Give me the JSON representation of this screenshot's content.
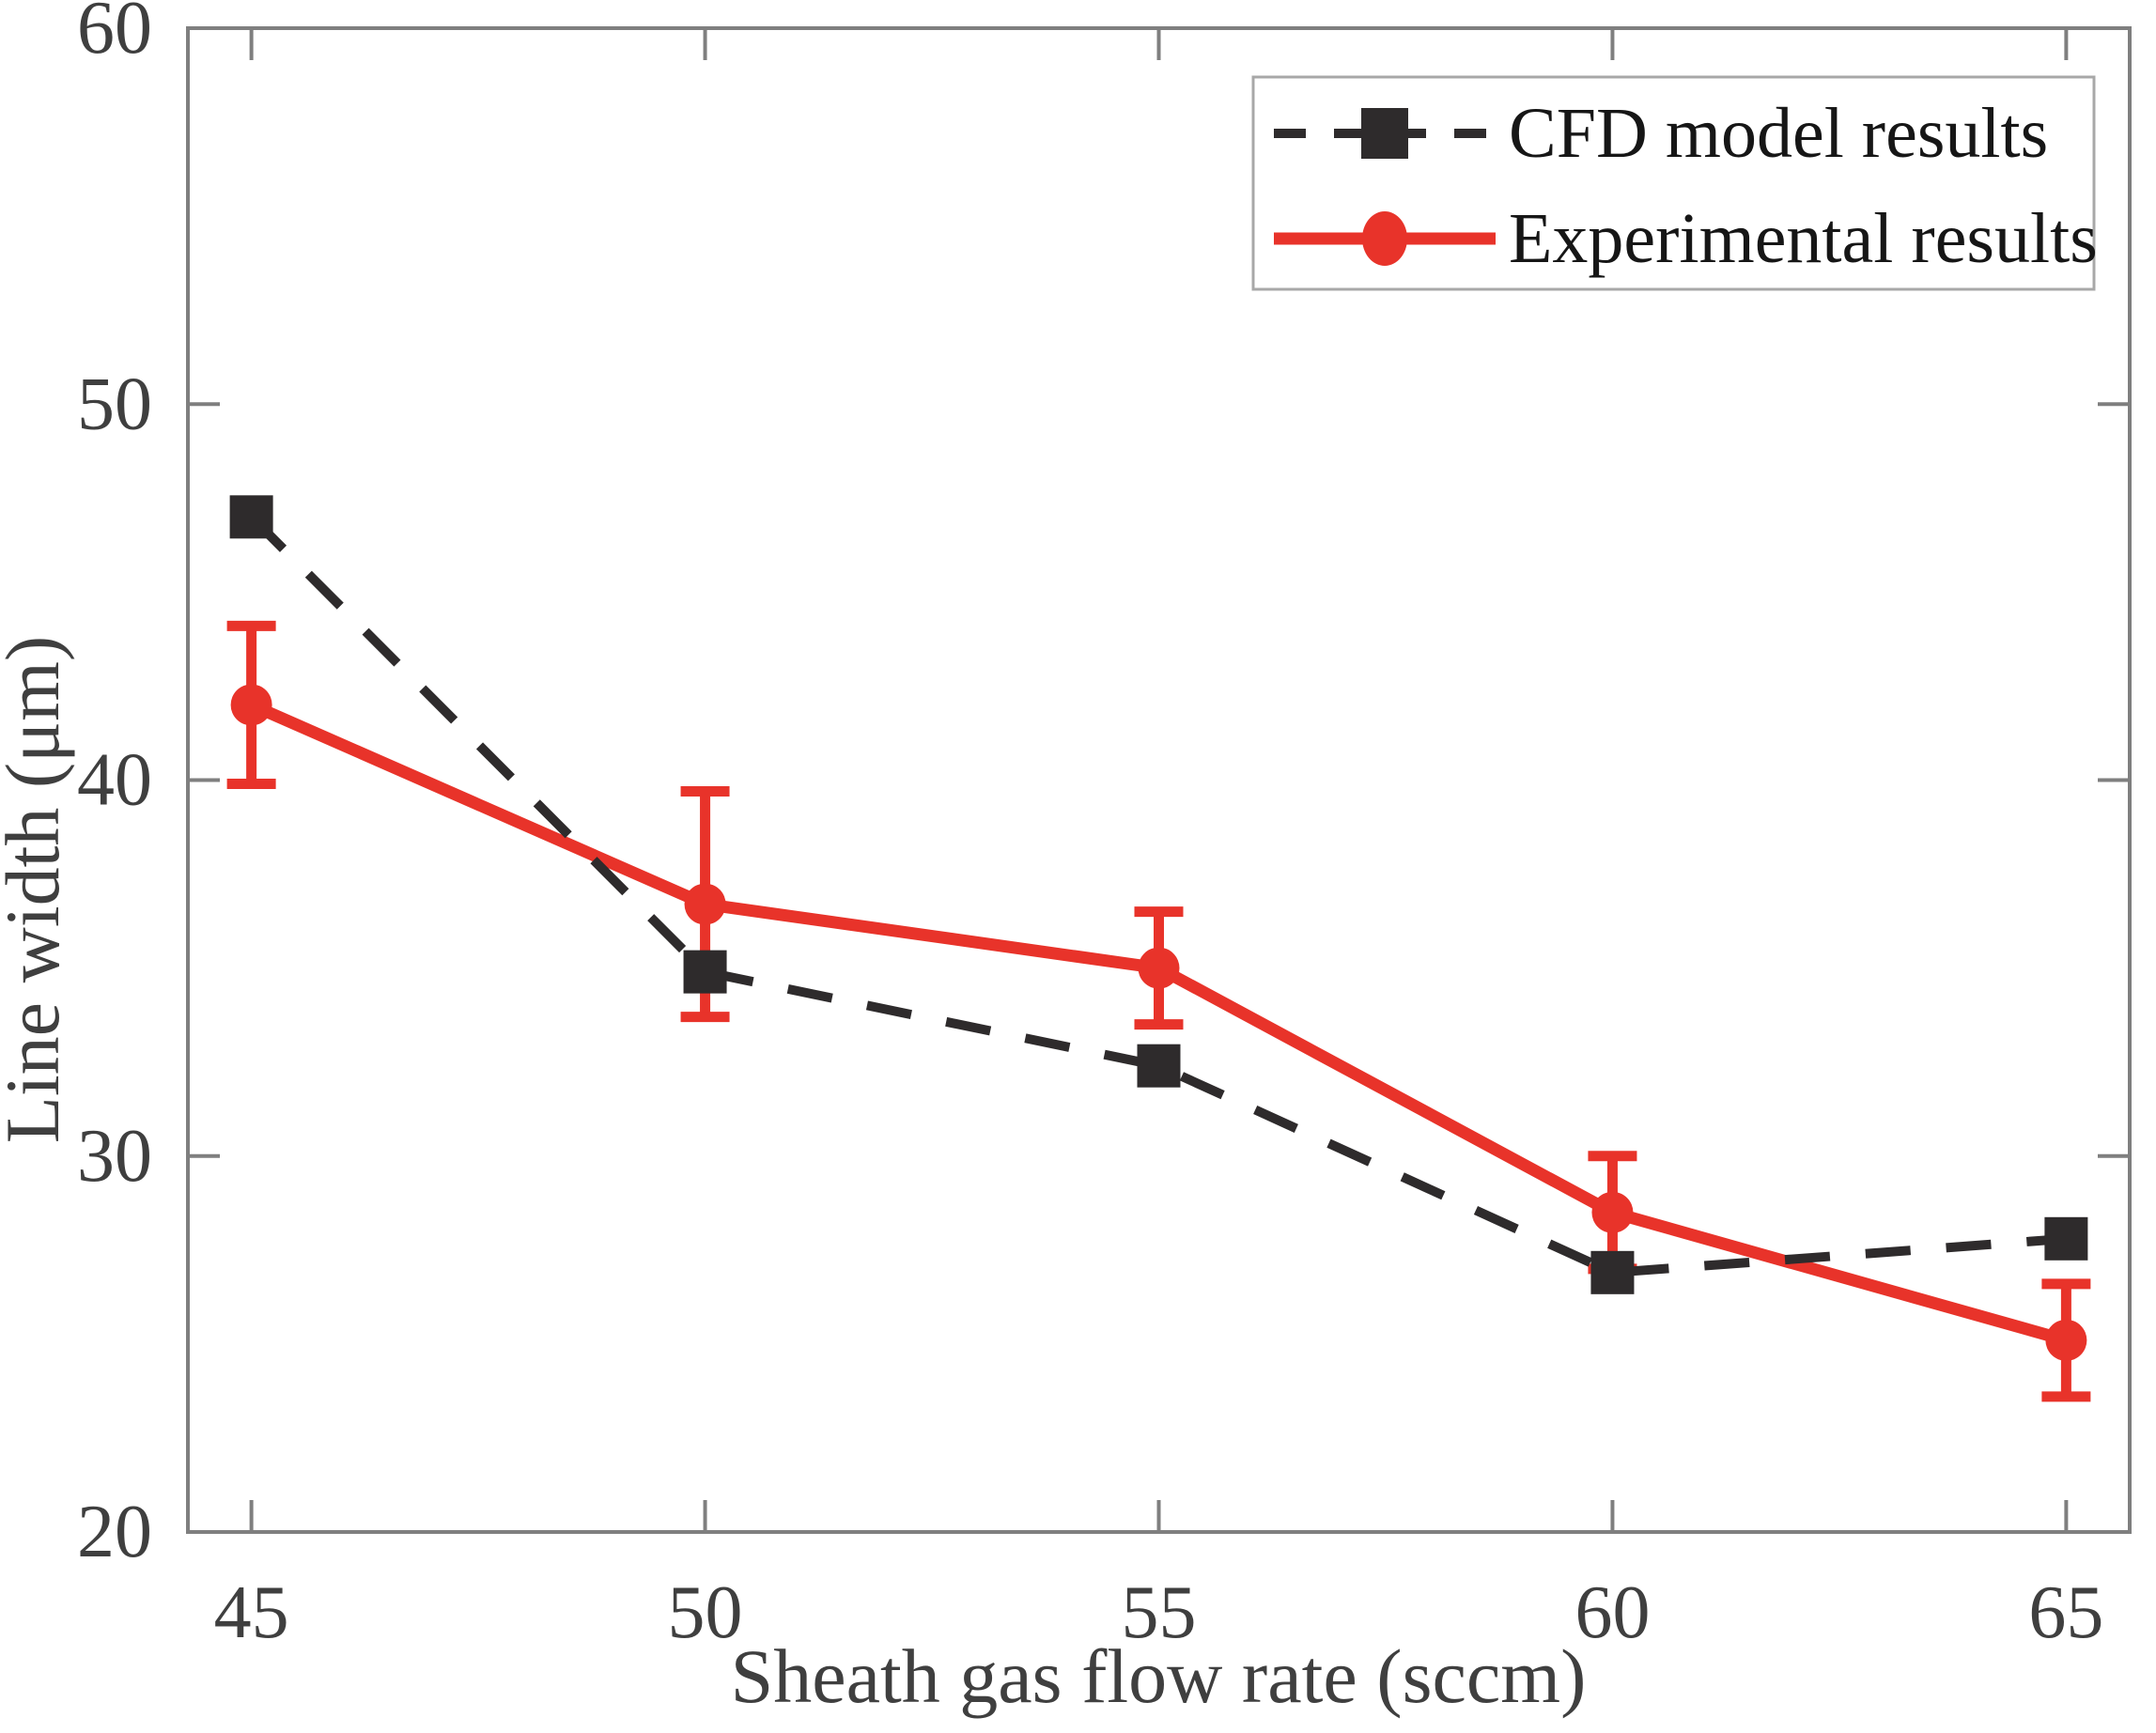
{
  "figure": {
    "background": "#ffffff",
    "axis_color": "#7f7f7f",
    "tick_label_color": "#3f3f3f",
    "axis_title_color": "#3f3f3f",
    "legend": {
      "border_color": "#a8a8a8",
      "background": "#ffffff",
      "text_color": "#161616"
    }
  },
  "chart_data": {
    "type": "line",
    "title": "",
    "xlabel": "Sheath gas flow rate (sccm)",
    "ylabel": "Line width (μm)",
    "xlim": [
      44.3,
      65.7
    ],
    "ylim": [
      20,
      60
    ],
    "xticks": [
      45,
      50,
      55,
      60,
      65
    ],
    "yticks": [
      20,
      30,
      40,
      50,
      60
    ],
    "grid": false,
    "legend_position": "top-right",
    "x": [
      45,
      50,
      55,
      60,
      65
    ],
    "series": [
      {
        "name": "CFD model results",
        "values": [
          47.0,
          34.9,
          32.4,
          26.9,
          27.8
        ],
        "color": "#2e2b2c",
        "line_style": "dashed",
        "marker": "square"
      },
      {
        "name": "Experimental results",
        "values": [
          42.0,
          36.7,
          35.0,
          28.5,
          25.1
        ],
        "error": [
          2.1,
          3.0,
          1.5,
          1.5,
          1.5
        ],
        "color": "#e8332a",
        "line_style": "solid",
        "marker": "circle"
      }
    ]
  }
}
